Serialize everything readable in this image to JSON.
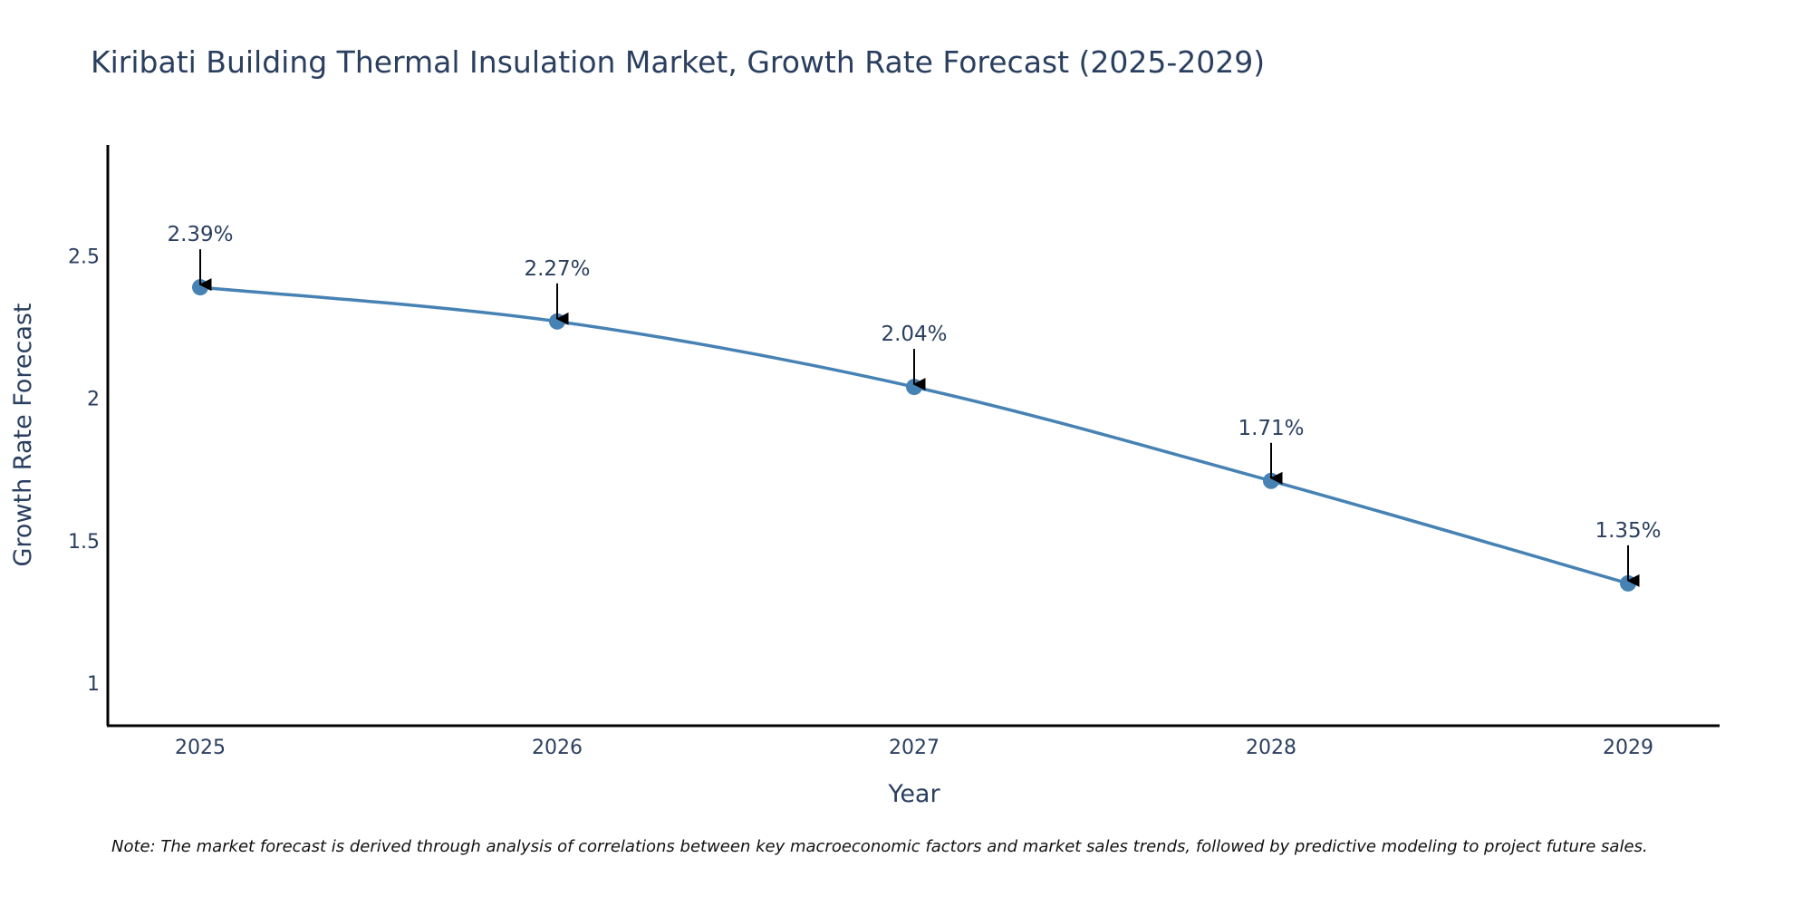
{
  "chart_data": {
    "type": "line",
    "title": "Kiribati Building Thermal Insulation Market, Growth Rate Forecast (2025-2029)",
    "xlabel": "Year",
    "ylabel": "Growth Rate Forecast",
    "categories": [
      "2025",
      "2026",
      "2027",
      "2028",
      "2029"
    ],
    "series": [
      {
        "name": "Growth Rate Forecast",
        "values": [
          2.39,
          2.27,
          2.04,
          1.71,
          1.35
        ],
        "labels": [
          "2.39%",
          "2.27%",
          "2.04%",
          "1.71%",
          "1.35%"
        ]
      }
    ],
    "ylim": [
      0.85,
      2.89
    ],
    "yticks": [
      1,
      1.5,
      2,
      2.5
    ],
    "ytick_labels": [
      "1",
      "1.5",
      "2",
      "2.5"
    ],
    "grid": false,
    "line_color": "#4682b4",
    "note": "Note: The market forecast is derived through analysis of correlations between key macroeconomic factors and market sales trends, followed by predictive modeling to project future sales."
  }
}
